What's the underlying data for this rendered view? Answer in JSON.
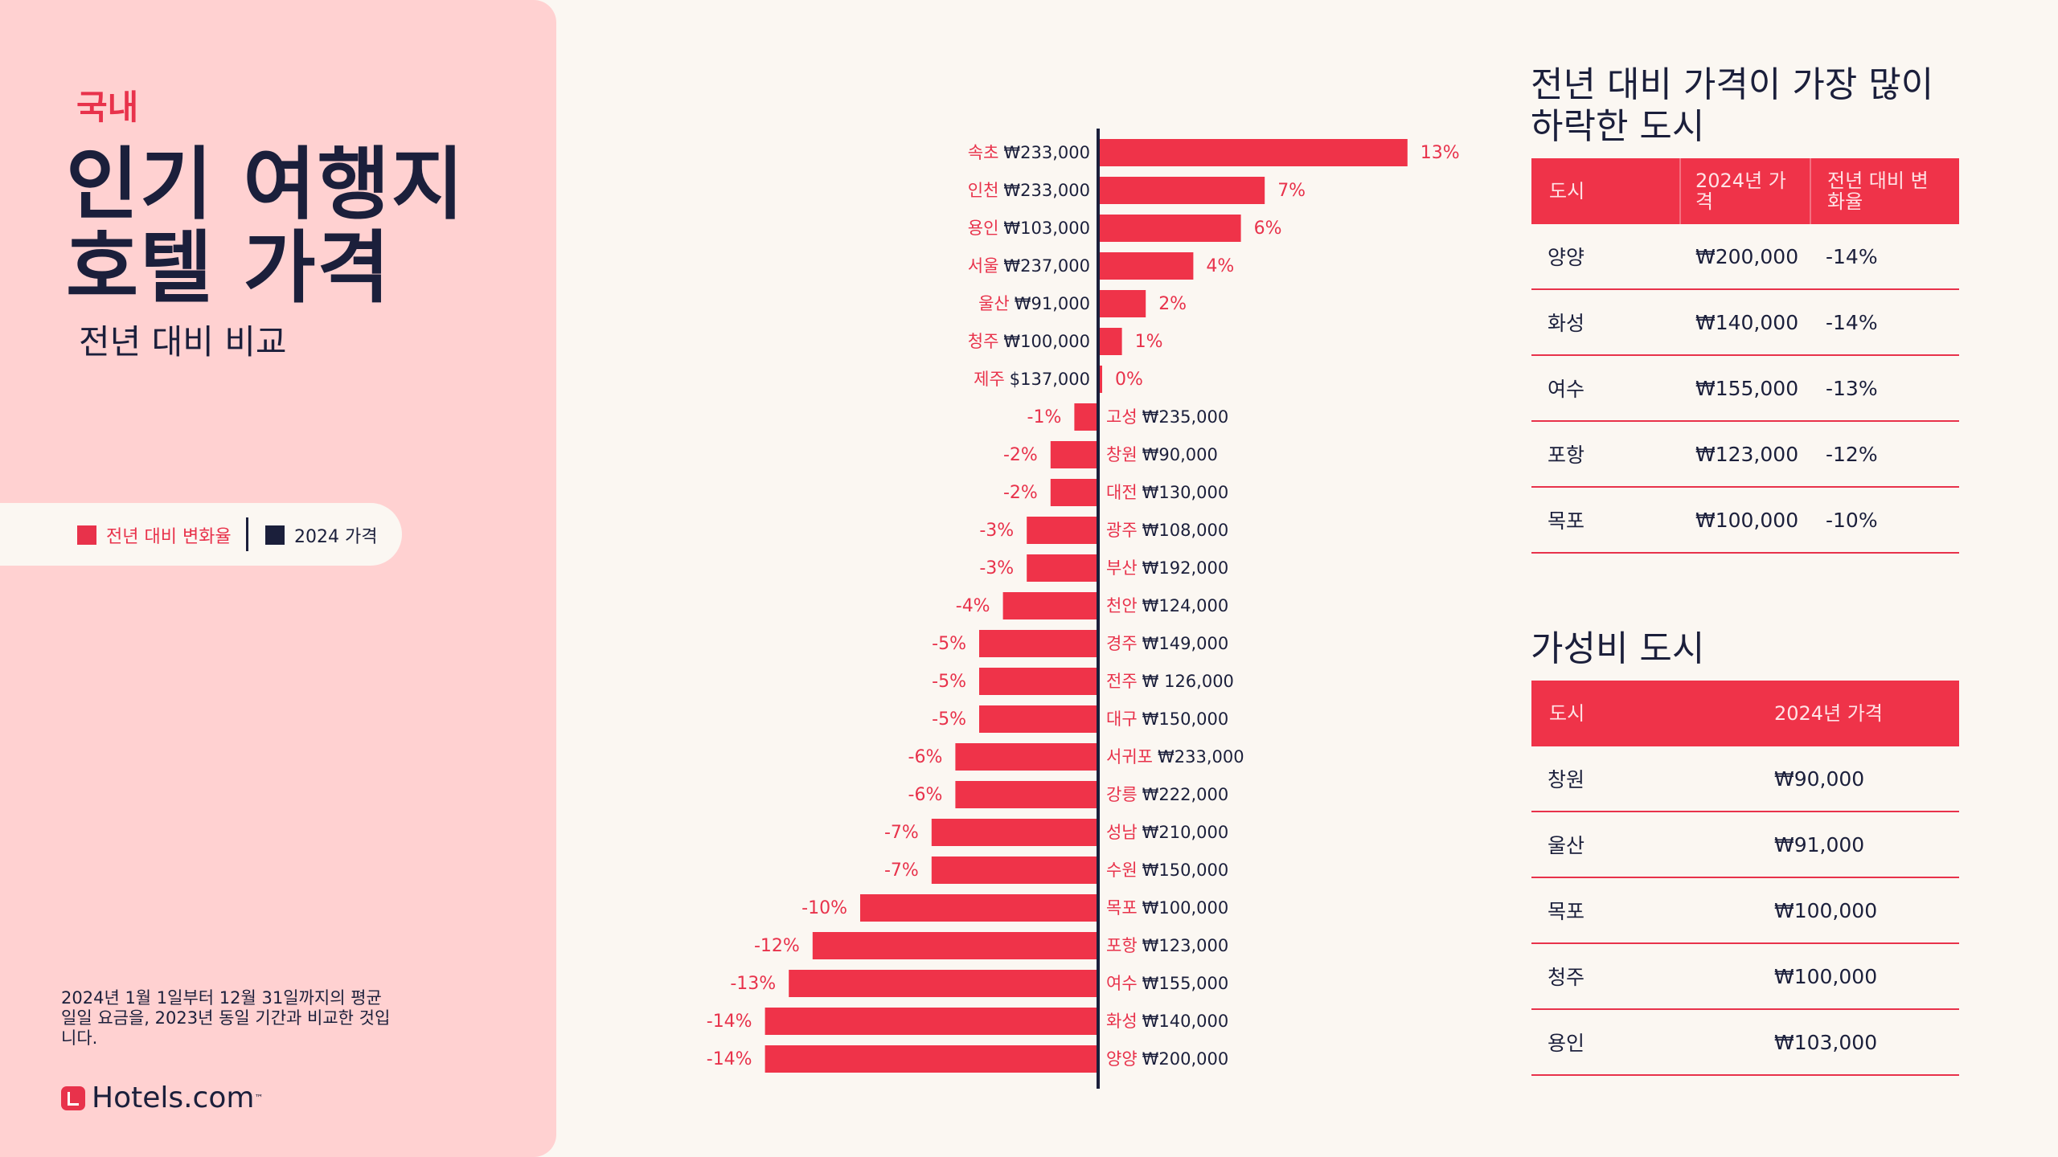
{
  "left_panel": {
    "eyebrow": "국내",
    "title_line1": "인기 여행지",
    "title_line2": "호텔 가격",
    "subtitle": "전년 대비 비교",
    "legend": {
      "change_label": "전년 대비 변화율",
      "price_label": "2024 가격"
    },
    "footnote": "2024년 1월 1일부터 12월 31일까지의 평균 일일 요금을, 2023년 동일 기간과 비교한 것입니다.",
    "logo_text": "Hotels.com",
    "logo_tm": "™"
  },
  "colors": {
    "accent": "#E8324B",
    "bar": "#EF3349",
    "navy": "#1B1F3B",
    "panel": "#FFD1D1",
    "background": "#FBF7F2"
  },
  "chart_data": {
    "type": "bar",
    "orientation": "horizontal",
    "categories": [
      "속초",
      "인천",
      "용인",
      "서울",
      "울산",
      "청주",
      "제주",
      "고성",
      "창원",
      "대전",
      "광주",
      "부산",
      "천안",
      "경주",
      "전주",
      "대구",
      "서귀포",
      "강릉",
      "성남",
      "수원",
      "목포",
      "포항",
      "여수",
      "화성",
      "양양"
    ],
    "price_labels": [
      "₩233,000",
      "₩233,000",
      "₩103,000",
      "₩237,000",
      "₩91,000",
      "₩100,000",
      "$137,000",
      "₩235,000",
      "₩90,000",
      "₩130,000",
      "₩108,000",
      "₩192,000",
      "₩124,000",
      "₩149,000",
      "₩ 126,000",
      "₩150,000",
      "₩233,000",
      "₩222,000",
      "₩210,000",
      "₩150,000",
      "₩100,000",
      "₩123,000",
      "₩155,000",
      "₩140,000",
      "₩200,000"
    ],
    "series": [
      {
        "name": "전년 대비 변화율",
        "values": [
          13,
          7,
          6,
          4,
          2,
          1,
          0,
          -1,
          -2,
          -2,
          -3,
          -3,
          -4,
          -5,
          -5,
          -5,
          -6,
          -6,
          -7,
          -7,
          -10,
          -12,
          -13,
          -14,
          -14
        ]
      }
    ],
    "value_labels": [
      "13%",
      "7%",
      "6%",
      "4%",
      "2%",
      "1%",
      "0%",
      "-1%",
      "-2%",
      "-2%",
      "-3%",
      "-3%",
      "-4%",
      "-5%",
      "-5%",
      "-5%",
      "-6%",
      "-6%",
      "-7%",
      "-7%",
      "-10%",
      "-12%",
      "-13%",
      "-14%",
      "-14%"
    ],
    "unit": "%",
    "xlim": [
      -14,
      13
    ],
    "grid": false
  },
  "table_decline": {
    "title_line1": "전년 대비 가격이 가장 많이",
    "title_line2": "하락한 도시",
    "headers": [
      "도시",
      "2024년 가격",
      "전년 대비 변화율"
    ],
    "rows": [
      [
        "양양",
        "₩200,000",
        "-14%"
      ],
      [
        "화성",
        "₩140,000",
        "-14%"
      ],
      [
        "여수",
        "₩155,000",
        "-13%"
      ],
      [
        "포항",
        "₩123,000",
        "-12%"
      ],
      [
        "목포",
        "₩100,000",
        "-10%"
      ]
    ]
  },
  "table_value": {
    "title": "가성비 도시",
    "headers": [
      "도시",
      "2024년 가격"
    ],
    "rows": [
      [
        "창원",
        "₩90,000"
      ],
      [
        "울산",
        "₩91,000"
      ],
      [
        "목포",
        "₩100,000"
      ],
      [
        "청주",
        "₩100,000"
      ],
      [
        "용인",
        "₩103,000"
      ]
    ]
  }
}
